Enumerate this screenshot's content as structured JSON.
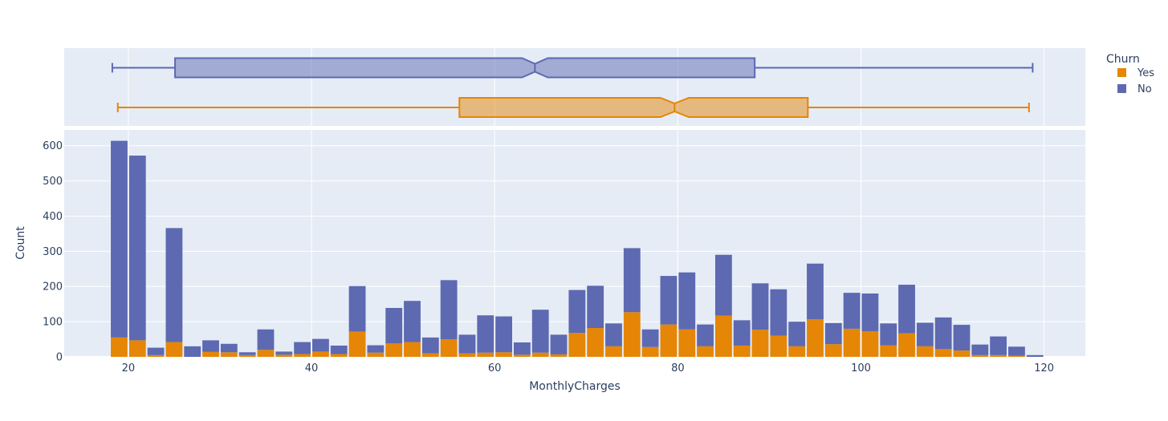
{
  "chart_data": {
    "type": "bar",
    "subtype": "stacked histogram with marginal notched box plots",
    "xlabel": "MonthlyCharges",
    "ylabel": "Count",
    "xlim": [
      13,
      124.5
    ],
    "ylim": [
      0,
      645
    ],
    "x_ticks": [
      20,
      40,
      60,
      80,
      100,
      120
    ],
    "y_ticks": [
      0,
      100,
      200,
      300,
      400,
      500,
      600
    ],
    "grid": true,
    "legend": {
      "title": "Churn",
      "position": "top-right"
    },
    "bin_start": 18,
    "bin_width": 2,
    "series": [
      {
        "name": "Yes",
        "color": "#e58606",
        "values": [
          55,
          47,
          5,
          42,
          0,
          14,
          13,
          5,
          20,
          6,
          8,
          15,
          8,
          72,
          12,
          38,
          42,
          10,
          50,
          10,
          12,
          13,
          6,
          12,
          7,
          68,
          82,
          30,
          127,
          28,
          92,
          78,
          30,
          117,
          32,
          77,
          60,
          30,
          107,
          36,
          80,
          73,
          33,
          67,
          30,
          22,
          18,
          5,
          5,
          3,
          0
        ]
      },
      {
        "name": "No",
        "color": "#5d69b1",
        "values": [
          559,
          525,
          21,
          324,
          30,
          33,
          24,
          8,
          58,
          9,
          34,
          36,
          24,
          129,
          21,
          101,
          117,
          45,
          168,
          53,
          106,
          102,
          35,
          122,
          56,
          122,
          120,
          65,
          182,
          50,
          138,
          162,
          62,
          173,
          72,
          132,
          132,
          70,
          158,
          60,
          102,
          107,
          62,
          138,
          67,
          90,
          73,
          30,
          53,
          26,
          5
        ]
      }
    ],
    "boxes": [
      {
        "name": "No",
        "color": "#5d69b1",
        "min": 18.25,
        "q1": 25.1,
        "median": 64.4,
        "q3": 88.4,
        "max": 118.75,
        "notch_low": 63.0,
        "notch_high": 65.8
      },
      {
        "name": "Yes",
        "color": "#e58606",
        "min": 18.85,
        "q1": 56.15,
        "median": 79.65,
        "q3": 94.2,
        "max": 118.35,
        "notch_low": 78.1,
        "notch_high": 81.2
      }
    ]
  }
}
